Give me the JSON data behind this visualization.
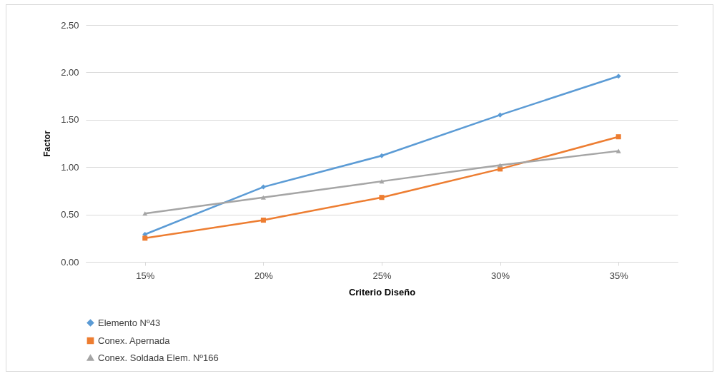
{
  "chart_data": {
    "type": "line",
    "xlabel": "Criterio Diseño",
    "ylabel": "Factor",
    "categories": [
      "15%",
      "20%",
      "25%",
      "30%",
      "35%"
    ],
    "series": [
      {
        "name": "Elemento Nº43",
        "color": "#5b9bd5",
        "marker": "diamond",
        "values": [
          0.29,
          0.79,
          1.12,
          1.55,
          1.96
        ]
      },
      {
        "name": "Conex. Apernada",
        "color": "#ed7d31",
        "marker": "square",
        "values": [
          0.25,
          0.44,
          0.68,
          0.98,
          1.32
        ]
      },
      {
        "name": "Conex. Soldada Elem. Nº166",
        "color": "#a5a5a5",
        "marker": "triangle",
        "values": [
          0.51,
          0.68,
          0.85,
          1.02,
          1.17
        ]
      }
    ],
    "ylim": [
      0,
      2.5
    ],
    "yticks": [
      {
        "value": 0,
        "label": "0.00"
      },
      {
        "value": 0.5,
        "label": "0.50"
      },
      {
        "value": 1,
        "label": "1.00"
      },
      {
        "value": 1.5,
        "label": "1.50"
      },
      {
        "value": 2,
        "label": "2.00"
      },
      {
        "value": 2.5,
        "label": "2.50"
      }
    ],
    "grid": "y",
    "legend": "bottom",
    "line_style": "solid"
  }
}
